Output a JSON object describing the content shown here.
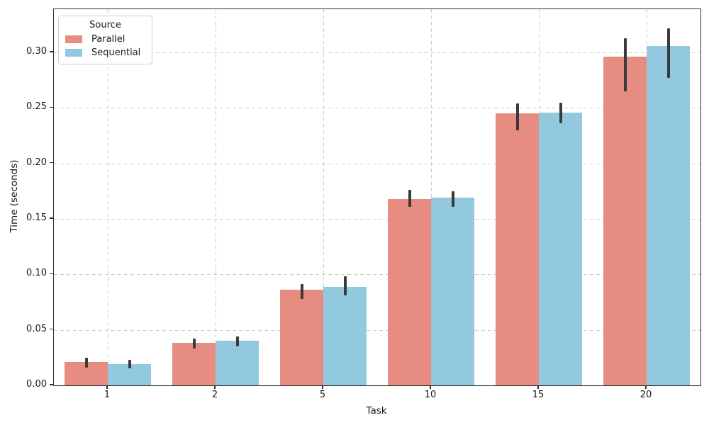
{
  "chart_data": {
    "type": "bar",
    "title": "",
    "xlabel": "Task",
    "ylabel": "Time (seconds)",
    "categories": [
      "1",
      "2",
      "5",
      "10",
      "15",
      "20"
    ],
    "series": [
      {
        "name": "Parallel",
        "color": "#E68C80",
        "values": [
          0.021,
          0.038,
          0.086,
          0.168,
          0.245,
          0.296
        ],
        "err_low": [
          0.016,
          0.033,
          0.078,
          0.161,
          0.23,
          0.265
        ],
        "err_high": [
          0.025,
          0.042,
          0.091,
          0.176,
          0.254,
          0.313
        ]
      },
      {
        "name": "Sequential",
        "color": "#92C9DE",
        "values": [
          0.019,
          0.04,
          0.089,
          0.169,
          0.246,
          0.306
        ],
        "err_low": [
          0.015,
          0.035,
          0.081,
          0.161,
          0.236,
          0.277
        ],
        "err_high": [
          0.023,
          0.044,
          0.098,
          0.175,
          0.255,
          0.322
        ]
      }
    ],
    "ylim": [
      0,
      0.339
    ],
    "yticks": [
      0,
      0.05,
      0.1,
      0.15,
      0.2,
      0.25,
      0.3
    ],
    "ytick_labels": [
      "0.00",
      "0.05",
      "0.10",
      "0.15",
      "0.20",
      "0.25",
      "0.30"
    ],
    "legend": {
      "title": "Source",
      "position": "upper-left"
    },
    "grid": {
      "style": "dashed",
      "axes": "both",
      "color": "#CCCCCC"
    },
    "errorbar_color": "#3A3A3A",
    "axis_color": "#2E2E2E"
  }
}
